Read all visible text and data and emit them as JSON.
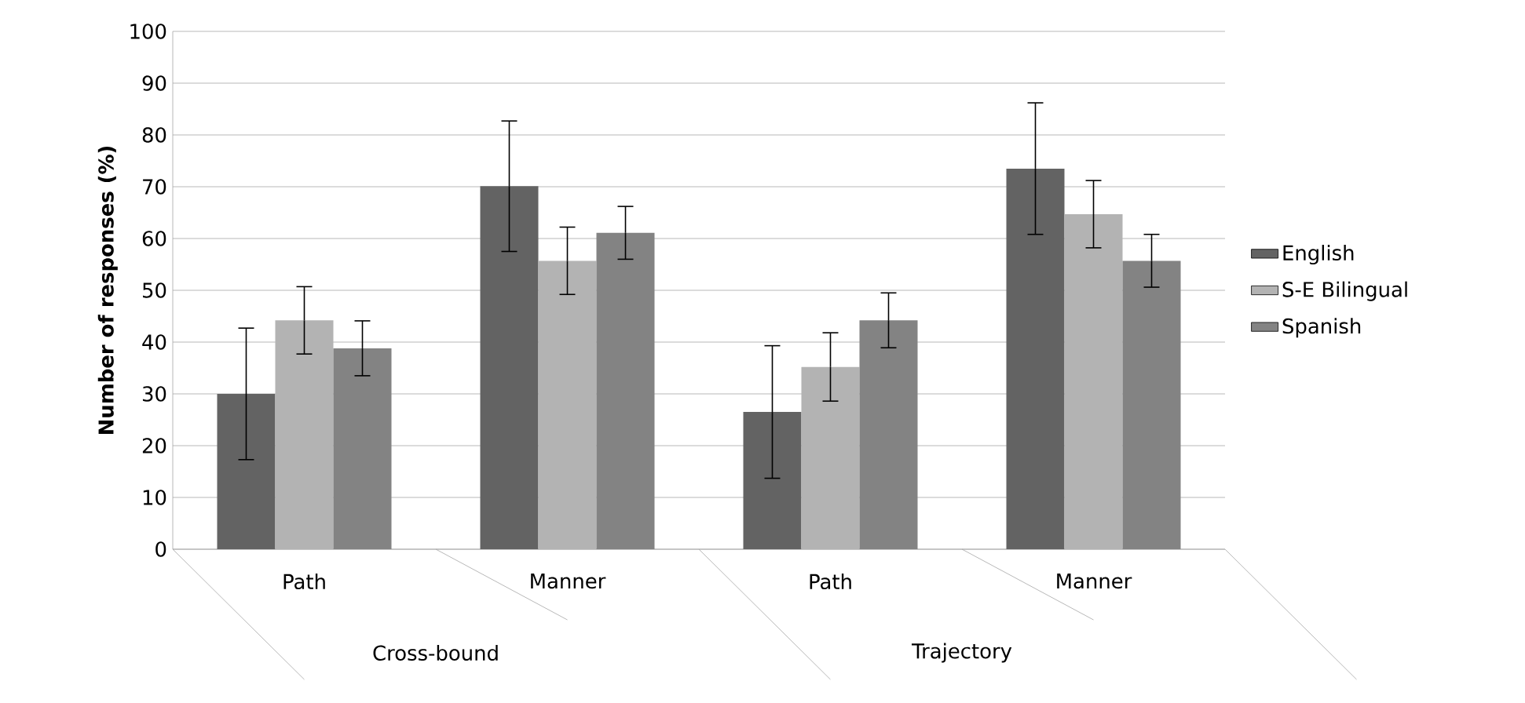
{
  "chart_data": {
    "type": "bar",
    "ylabel": "Number of responses (%)",
    "categories": [
      "Path",
      "Manner",
      "Path",
      "Manner"
    ],
    "series": [
      {
        "name": "English",
        "color": "#636363",
        "values": [
          30,
          70.1,
          26.5,
          73.5
        ],
        "errors": [
          12.7,
          12.6,
          12.8,
          12.7
        ]
      },
      {
        "name": "S-E Bilingual",
        "color": "#b3b3b3",
        "values": [
          44.2,
          55.7,
          35.2,
          64.7
        ],
        "errors": [
          6.5,
          6.5,
          6.6,
          6.5
        ]
      },
      {
        "name": "Spanish",
        "color": "#838383",
        "values": [
          38.8,
          61.1,
          44.2,
          55.7
        ],
        "errors": [
          5.3,
          5.1,
          5.3,
          5.1
        ]
      }
    ],
    "annotations": [
      "Cross-bound",
      "Trajectory"
    ],
    "ylim": [
      0,
      100
    ],
    "yticks": [
      0,
      10,
      20,
      30,
      40,
      50,
      60,
      70,
      80,
      90,
      100
    ],
    "grid": "y",
    "legend": "right"
  }
}
